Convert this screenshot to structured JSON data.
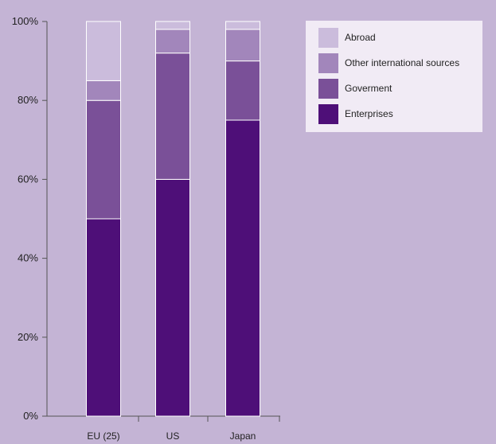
{
  "chart_data": {
    "type": "bar",
    "stacked": true,
    "categories": [
      "EU (25)",
      "US",
      "Japan"
    ],
    "y_ticks": [
      "0%",
      "20%",
      "40%",
      "60%",
      "80%",
      "100%"
    ],
    "ylim": [
      0,
      100
    ],
    "grid": false,
    "legend_position": "top-right",
    "series": [
      {
        "name": "Enterprises",
        "color": "#4e0f78",
        "values": [
          50,
          60,
          75
        ]
      },
      {
        "name": "Goverment",
        "color": "#7a5098",
        "values": [
          30,
          32,
          15
        ]
      },
      {
        "name": "Other international sources",
        "color": "#a286bb",
        "values": [
          5,
          6,
          8
        ]
      },
      {
        "name": "Abroad",
        "color": "#cbbcdc",
        "values": [
          15,
          2,
          2
        ]
      }
    ]
  }
}
